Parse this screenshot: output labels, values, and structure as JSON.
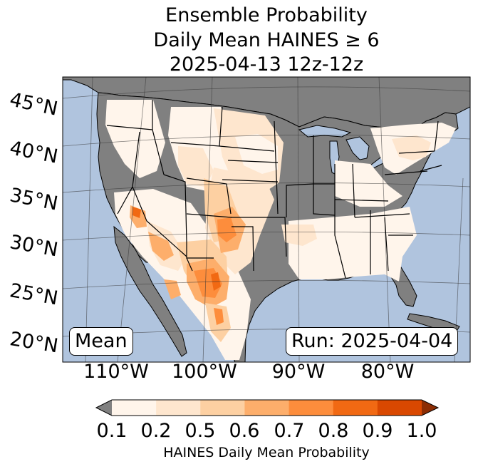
{
  "title": {
    "line1": "Ensemble Probability",
    "line2": "Daily Mean HAINES ≥ 6",
    "line3": "2025-04-13 12z-12z"
  },
  "map": {
    "ocean_color": "#b0c4de",
    "land_color": "#808080",
    "latitude_labels": [
      "45°N",
      "40°N",
      "35°N",
      "30°N",
      "25°N",
      "20°N"
    ],
    "longitude_labels": [
      "110°W",
      "100°W",
      "90°W",
      "80°W"
    ]
  },
  "stat_label": "Mean",
  "run_label": "Run: 2025-04-04",
  "colorbar": {
    "tick_labels": [
      "0.1",
      "0.2",
      "0.5",
      "0.6",
      "0.7",
      "0.8",
      "0.9",
      "1.0"
    ],
    "colors": [
      "#fff5eb",
      "#fee6ce",
      "#fdd0a2",
      "#fdae6b",
      "#fd8d3c",
      "#f16913",
      "#d94801"
    ],
    "under_color": "#808080",
    "over_color": "#8c2d04",
    "label": "HAINES Daily Mean Probability"
  }
}
